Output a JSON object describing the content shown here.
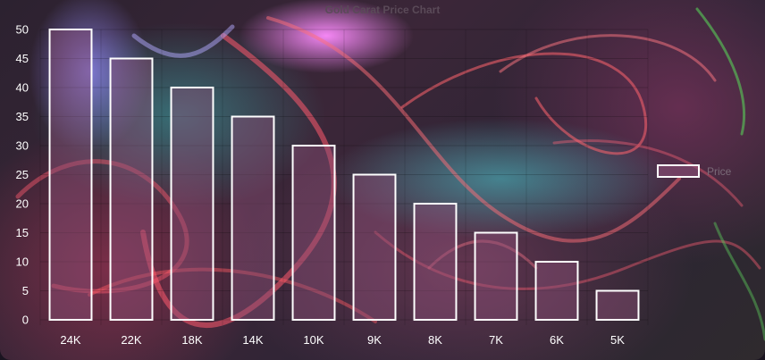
{
  "chart_data": {
    "type": "bar",
    "title": "Gold Carat Price Chart",
    "categories": [
      "24K",
      "22K",
      "18K",
      "14K",
      "10K",
      "9K",
      "8K",
      "7K",
      "6K",
      "5K"
    ],
    "series": [
      {
        "name": "Price",
        "values": [
          50,
          45,
          40,
          35,
          30,
          25,
          20,
          15,
          10,
          5
        ]
      }
    ],
    "yticks": [
      "0",
      "5",
      "10",
      "15",
      "20",
      "25",
      "30",
      "35",
      "40",
      "45",
      "50"
    ],
    "ylim": [
      0,
      50
    ],
    "grid": true,
    "legend_position": "right",
    "bar_fill": "#8c5078",
    "bar_stroke": "#ffffff"
  }
}
